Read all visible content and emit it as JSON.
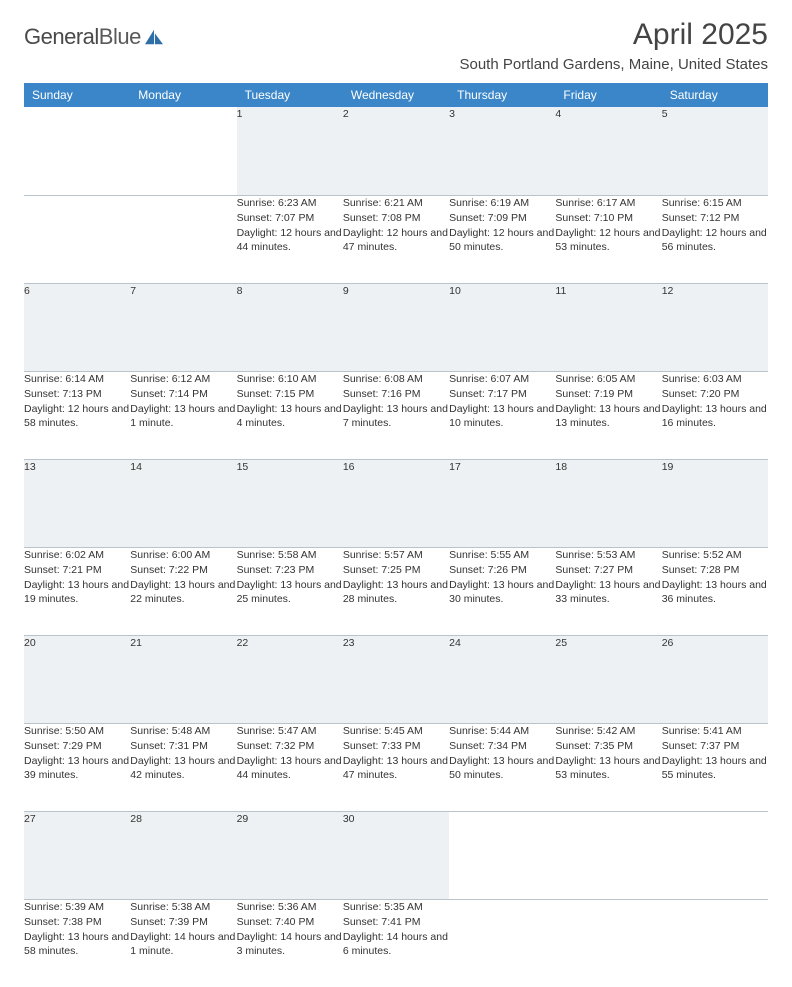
{
  "brand": {
    "name1": "General",
    "name2": "Blue"
  },
  "title": "April 2025",
  "location": "South Portland Gardens, Maine, United States",
  "theme": {
    "header_bg": "#3a86c8",
    "header_fg": "#ffffff",
    "daynum_bg": "#eef1f3",
    "border": "#b8c3cc",
    "text": "#333333",
    "logo_blue": "#2f6fa8"
  },
  "columns": [
    "Sunday",
    "Monday",
    "Tuesday",
    "Wednesday",
    "Thursday",
    "Friday",
    "Saturday"
  ],
  "weeks": [
    [
      null,
      null,
      {
        "n": "1",
        "sr": "Sunrise: 6:23 AM",
        "ss": "Sunset: 7:07 PM",
        "dl": "Daylight: 12 hours and 44 minutes."
      },
      {
        "n": "2",
        "sr": "Sunrise: 6:21 AM",
        "ss": "Sunset: 7:08 PM",
        "dl": "Daylight: 12 hours and 47 minutes."
      },
      {
        "n": "3",
        "sr": "Sunrise: 6:19 AM",
        "ss": "Sunset: 7:09 PM",
        "dl": "Daylight: 12 hours and 50 minutes."
      },
      {
        "n": "4",
        "sr": "Sunrise: 6:17 AM",
        "ss": "Sunset: 7:10 PM",
        "dl": "Daylight: 12 hours and 53 minutes."
      },
      {
        "n": "5",
        "sr": "Sunrise: 6:15 AM",
        "ss": "Sunset: 7:12 PM",
        "dl": "Daylight: 12 hours and 56 minutes."
      }
    ],
    [
      {
        "n": "6",
        "sr": "Sunrise: 6:14 AM",
        "ss": "Sunset: 7:13 PM",
        "dl": "Daylight: 12 hours and 58 minutes."
      },
      {
        "n": "7",
        "sr": "Sunrise: 6:12 AM",
        "ss": "Sunset: 7:14 PM",
        "dl": "Daylight: 13 hours and 1 minute."
      },
      {
        "n": "8",
        "sr": "Sunrise: 6:10 AM",
        "ss": "Sunset: 7:15 PM",
        "dl": "Daylight: 13 hours and 4 minutes."
      },
      {
        "n": "9",
        "sr": "Sunrise: 6:08 AM",
        "ss": "Sunset: 7:16 PM",
        "dl": "Daylight: 13 hours and 7 minutes."
      },
      {
        "n": "10",
        "sr": "Sunrise: 6:07 AM",
        "ss": "Sunset: 7:17 PM",
        "dl": "Daylight: 13 hours and 10 minutes."
      },
      {
        "n": "11",
        "sr": "Sunrise: 6:05 AM",
        "ss": "Sunset: 7:19 PM",
        "dl": "Daylight: 13 hours and 13 minutes."
      },
      {
        "n": "12",
        "sr": "Sunrise: 6:03 AM",
        "ss": "Sunset: 7:20 PM",
        "dl": "Daylight: 13 hours and 16 minutes."
      }
    ],
    [
      {
        "n": "13",
        "sr": "Sunrise: 6:02 AM",
        "ss": "Sunset: 7:21 PM",
        "dl": "Daylight: 13 hours and 19 minutes."
      },
      {
        "n": "14",
        "sr": "Sunrise: 6:00 AM",
        "ss": "Sunset: 7:22 PM",
        "dl": "Daylight: 13 hours and 22 minutes."
      },
      {
        "n": "15",
        "sr": "Sunrise: 5:58 AM",
        "ss": "Sunset: 7:23 PM",
        "dl": "Daylight: 13 hours and 25 minutes."
      },
      {
        "n": "16",
        "sr": "Sunrise: 5:57 AM",
        "ss": "Sunset: 7:25 PM",
        "dl": "Daylight: 13 hours and 28 minutes."
      },
      {
        "n": "17",
        "sr": "Sunrise: 5:55 AM",
        "ss": "Sunset: 7:26 PM",
        "dl": "Daylight: 13 hours and 30 minutes."
      },
      {
        "n": "18",
        "sr": "Sunrise: 5:53 AM",
        "ss": "Sunset: 7:27 PM",
        "dl": "Daylight: 13 hours and 33 minutes."
      },
      {
        "n": "19",
        "sr": "Sunrise: 5:52 AM",
        "ss": "Sunset: 7:28 PM",
        "dl": "Daylight: 13 hours and 36 minutes."
      }
    ],
    [
      {
        "n": "20",
        "sr": "Sunrise: 5:50 AM",
        "ss": "Sunset: 7:29 PM",
        "dl": "Daylight: 13 hours and 39 minutes."
      },
      {
        "n": "21",
        "sr": "Sunrise: 5:48 AM",
        "ss": "Sunset: 7:31 PM",
        "dl": "Daylight: 13 hours and 42 minutes."
      },
      {
        "n": "22",
        "sr": "Sunrise: 5:47 AM",
        "ss": "Sunset: 7:32 PM",
        "dl": "Daylight: 13 hours and 44 minutes."
      },
      {
        "n": "23",
        "sr": "Sunrise: 5:45 AM",
        "ss": "Sunset: 7:33 PM",
        "dl": "Daylight: 13 hours and 47 minutes."
      },
      {
        "n": "24",
        "sr": "Sunrise: 5:44 AM",
        "ss": "Sunset: 7:34 PM",
        "dl": "Daylight: 13 hours and 50 minutes."
      },
      {
        "n": "25",
        "sr": "Sunrise: 5:42 AM",
        "ss": "Sunset: 7:35 PM",
        "dl": "Daylight: 13 hours and 53 minutes."
      },
      {
        "n": "26",
        "sr": "Sunrise: 5:41 AM",
        "ss": "Sunset: 7:37 PM",
        "dl": "Daylight: 13 hours and 55 minutes."
      }
    ],
    [
      {
        "n": "27",
        "sr": "Sunrise: 5:39 AM",
        "ss": "Sunset: 7:38 PM",
        "dl": "Daylight: 13 hours and 58 minutes."
      },
      {
        "n": "28",
        "sr": "Sunrise: 5:38 AM",
        "ss": "Sunset: 7:39 PM",
        "dl": "Daylight: 14 hours and 1 minute."
      },
      {
        "n": "29",
        "sr": "Sunrise: 5:36 AM",
        "ss": "Sunset: 7:40 PM",
        "dl": "Daylight: 14 hours and 3 minutes."
      },
      {
        "n": "30",
        "sr": "Sunrise: 5:35 AM",
        "ss": "Sunset: 7:41 PM",
        "dl": "Daylight: 14 hours and 6 minutes."
      },
      null,
      null,
      null
    ]
  ]
}
